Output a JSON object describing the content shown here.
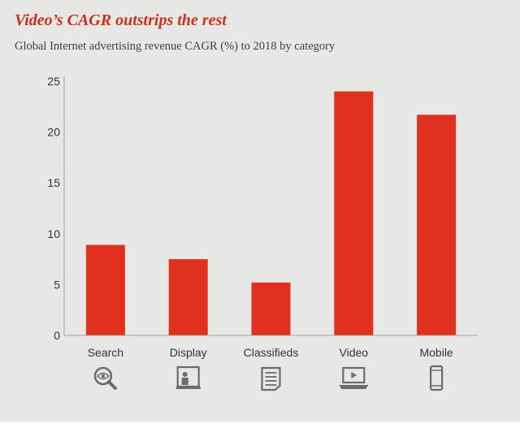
{
  "title": "Video’s CAGR outstrips the rest",
  "subtitle": "Global Internet advertising revenue CAGR (%) to 2018 by category",
  "colors": {
    "bar": "#e0301e",
    "axis": "#a0a0a0",
    "icon": "#6b6b6b",
    "background": "#e7e7e5"
  },
  "chart_data": {
    "type": "bar",
    "title": "Video’s CAGR outstrips the rest",
    "subtitle": "Global Internet advertising revenue CAGR (%) to 2018 by category",
    "xlabel": "",
    "ylabel": "",
    "categories": [
      "Search",
      "Display",
      "Classifieds",
      "Video",
      "Mobile"
    ],
    "values": [
      8.9,
      7.5,
      5.2,
      24.0,
      21.7
    ],
    "ylim": [
      0,
      25
    ],
    "yticks": [
      0,
      5,
      10,
      15,
      20,
      25
    ],
    "grid": false,
    "legend": "none",
    "icons": [
      "search-eye-icon",
      "display-screen-icon",
      "classifieds-document-icon",
      "video-laptop-icon",
      "mobile-phone-icon"
    ]
  }
}
